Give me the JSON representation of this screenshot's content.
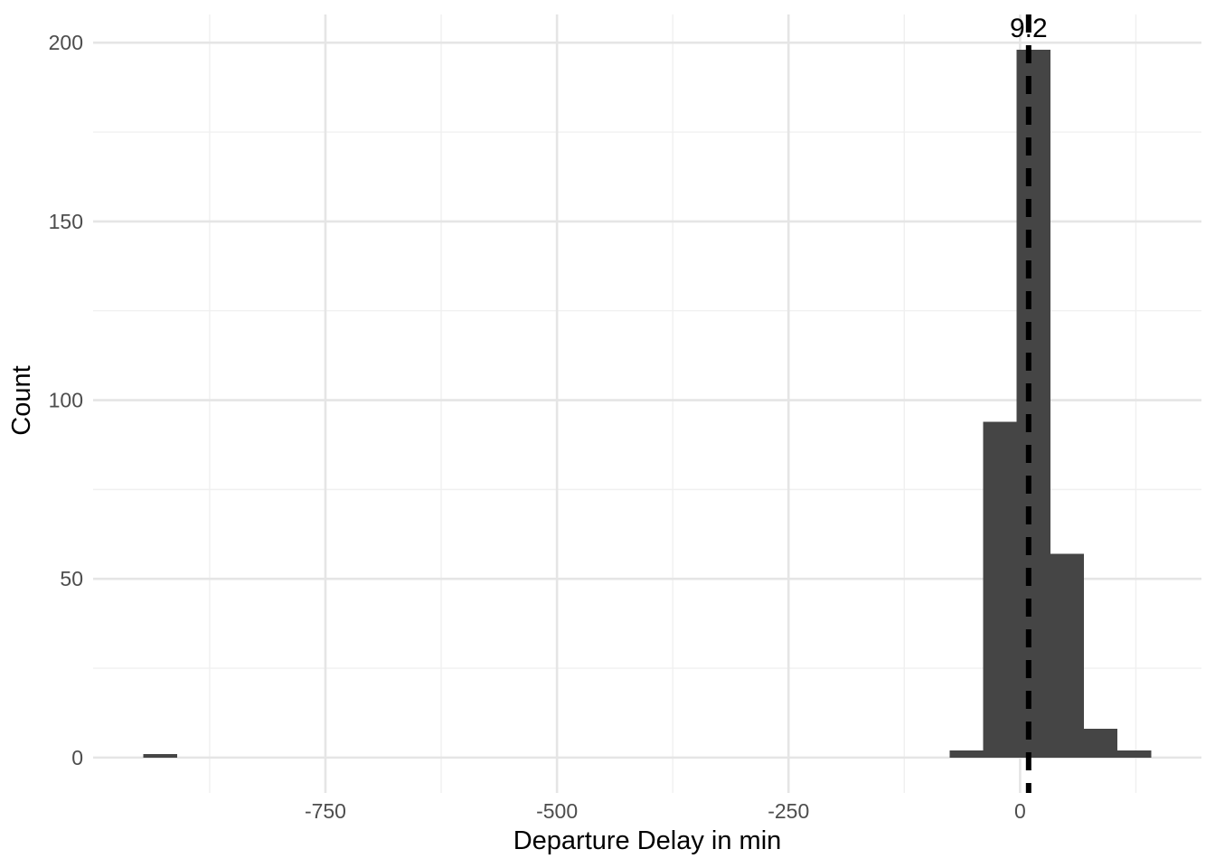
{
  "chart_data": {
    "type": "bar",
    "subtype": "histogram",
    "title": "",
    "xlabel": "Departure Delay in min",
    "ylabel": "Count",
    "x_domain": [
      -1000.8,
      195.8
    ],
    "y_domain": [
      -9.9,
      207.9
    ],
    "x_ticks": [
      -750,
      -500,
      -250,
      0
    ],
    "x_minor_gridlines": [
      -875,
      -625,
      -375,
      -125,
      125
    ],
    "y_ticks": [
      0,
      50,
      100,
      150,
      200
    ],
    "y_minor_gridlines": [
      25,
      75,
      125,
      175
    ],
    "bins": [
      {
        "x0": -946.4,
        "x1": -910.1,
        "count": 1
      },
      {
        "x0": -76.2,
        "x1": -39.9,
        "count": 2
      },
      {
        "x0": -39.9,
        "x1": -3.7,
        "count": 94
      },
      {
        "x0": -3.7,
        "x1": 32.6,
        "count": 198
      },
      {
        "x0": 32.6,
        "x1": 68.8,
        "count": 57
      },
      {
        "x0": 68.8,
        "x1": 105.1,
        "count": 8
      },
      {
        "x0": 105.1,
        "x1": 141.4,
        "count": 2
      }
    ],
    "vline": {
      "x": 9.2,
      "label": "9.2",
      "style": "dashed"
    },
    "grid": true,
    "legend": "none",
    "colors": {
      "bar_fill": "#454545",
      "vline": "#000000",
      "major_gridline": "#e5e5e5",
      "minor_gridline": "#f0f0f0",
      "tick_label": "#4d4d4d",
      "axis_title": "#000000",
      "annotation": "#000000",
      "background": "#ffffff"
    }
  }
}
